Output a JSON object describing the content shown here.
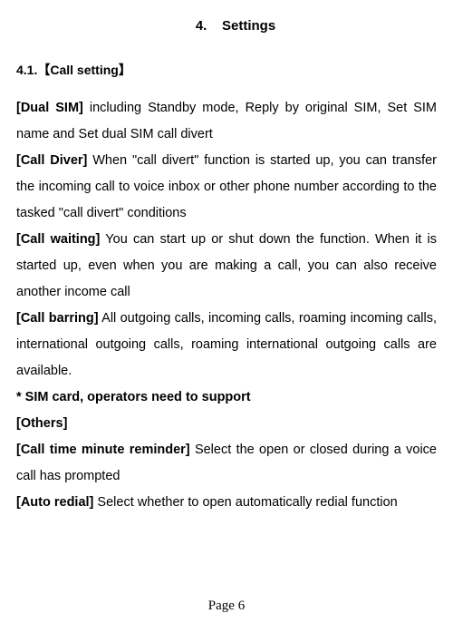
{
  "chapter": {
    "number": "4.",
    "title": "Settings"
  },
  "section": {
    "number": "4.1.",
    "bracket_open": "【",
    "title": "Call setting",
    "bracket_close": "】"
  },
  "items": {
    "dual_sim": {
      "label": "[Dual SIM]",
      "text": " including Standby mode, Reply by original SIM, Set SIM name and Set dual SIM call divert"
    },
    "call_diver": {
      "label": "[Call Diver]",
      "text": " When \"call divert\" function is started up, you can transfer the incoming call to voice inbox or other phone number according to the tasked \"call divert\" conditions"
    },
    "call_waiting": {
      "label": "[Call waiting]",
      "text": " You can start up or shut down the function. When it is started up, even when you are making a call, you can also receive another income call"
    },
    "call_barring": {
      "label": "[Call barring]",
      "text": " All outgoing calls, incoming calls, roaming incoming calls, international outgoing calls, roaming international outgoing calls are available."
    },
    "sim_note": {
      "label": "* SIM card, operators need to support"
    },
    "others": {
      "label": "[Others]"
    },
    "call_time": {
      "label": "[Call time minute reminder]",
      "text": " Select the open or closed during a voice call has prompted"
    },
    "auto_redial": {
      "label": "[Auto redial]",
      "text": " Select whether to open automatically redial function"
    }
  },
  "footer": {
    "text": "Page 6"
  },
  "styles": {
    "background_color": "#ffffff",
    "text_color": "#000000",
    "body_fontsize": 14.5,
    "heading_fontsize": 15,
    "line_height": 2.0
  }
}
